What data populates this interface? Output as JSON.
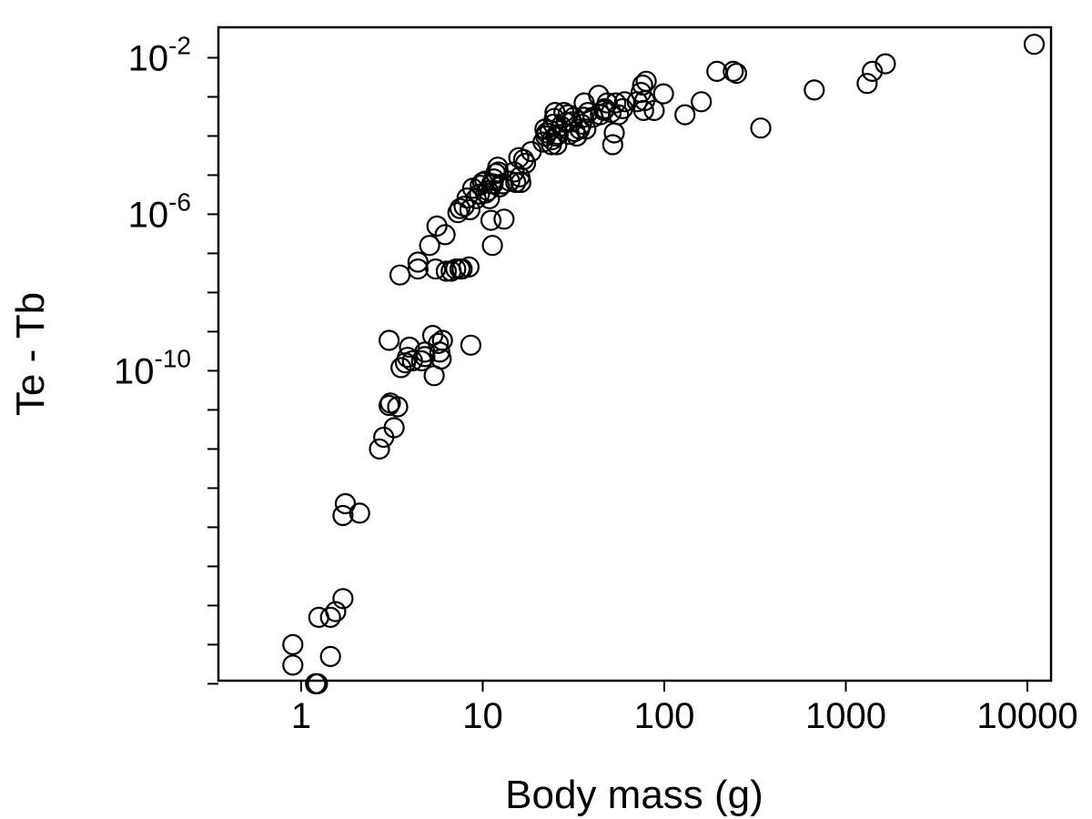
{
  "chart_data": {
    "type": "scatter",
    "title": "",
    "xlabel": "Body mass (g)",
    "ylabel": "Te - Tb",
    "x_scale": "log10",
    "y_scale": "log10",
    "xlim": [
      0.35,
      13500
    ],
    "ylim": [
      1.2e-18,
      0.06
    ],
    "x_ticks": [
      {
        "value": 1,
        "label": "1"
      },
      {
        "value": 10,
        "label": "10"
      },
      {
        "value": 100,
        "label": "100"
      },
      {
        "value": 1000,
        "label": "1000"
      },
      {
        "value": 10000,
        "label": "10000"
      }
    ],
    "y_ticks_labeled": [
      {
        "value": 0.01,
        "base": "10",
        "exp": "-2"
      },
      {
        "value": 1e-06,
        "base": "10",
        "exp": "-6"
      },
      {
        "value": 1e-10,
        "base": "10",
        "exp": "-10"
      }
    ],
    "y_ticks_minor": [
      0.001,
      0.0001,
      1e-05,
      1e-07,
      1e-08,
      1e-09,
      1e-11,
      1e-12,
      1e-13,
      1e-14,
      1e-15,
      1e-16,
      1e-17,
      1e-18
    ],
    "marker": "open-circle",
    "grid": false,
    "legend": "none",
    "series": [
      {
        "points": [
          [
            0.9,
            3e-18
          ],
          [
            0.9,
            1e-17
          ],
          [
            1.2,
            1e-18
          ],
          [
            1.23,
            1e-18
          ],
          [
            1.25,
            5e-17
          ],
          [
            1.45,
            5e-17
          ],
          [
            1.45,
            5e-18
          ],
          [
            1.55,
            7e-17
          ],
          [
            1.7,
            1.5e-16
          ],
          [
            1.7,
            2e-14
          ],
          [
            1.75,
            4e-14
          ],
          [
            2.1,
            2.3e-14
          ],
          [
            2.7,
            1e-12
          ],
          [
            2.85,
            2e-12
          ],
          [
            3.05,
            1.3e-11
          ],
          [
            3.1,
            1.5e-11
          ],
          [
            3.25,
            3.5e-12
          ],
          [
            3.4,
            1.2e-11
          ],
          [
            3.05,
            6e-10
          ],
          [
            3.5,
            2.8e-08
          ],
          [
            3.55,
            1.2e-10
          ],
          [
            3.75,
            1.6e-10
          ],
          [
            3.85,
            2.2e-10
          ],
          [
            3.95,
            4e-10
          ],
          [
            4.1,
            1.8e-10
          ],
          [
            4.4,
            6e-08
          ],
          [
            4.4,
            4e-08
          ],
          [
            4.6,
            1.8e-10
          ],
          [
            4.8,
            2.3e-10
          ],
          [
            4.8,
            3e-10
          ],
          [
            5.1,
            1.6e-07
          ],
          [
            5.3,
            8e-10
          ],
          [
            5.4,
            7.5e-11
          ],
          [
            5.5,
            4e-08
          ],
          [
            5.6,
            5e-07
          ],
          [
            5.7,
            5e-10
          ],
          [
            5.8,
            3e-10
          ],
          [
            5.9,
            2e-10
          ],
          [
            6.0,
            6e-10
          ],
          [
            6.2,
            3e-07
          ],
          [
            6.3,
            3.5e-08
          ],
          [
            6.7,
            3.5e-08
          ],
          [
            7.1,
            4e-08
          ],
          [
            7.3,
            1.1e-06
          ],
          [
            7.5,
            1.4e-06
          ],
          [
            7.5,
            4e-08
          ],
          [
            7.7,
            4e-08
          ],
          [
            7.9,
            1.6e-06
          ],
          [
            8.2,
            2.6e-06
          ],
          [
            8.4,
            4.5e-08
          ],
          [
            8.5,
            1.3e-06
          ],
          [
            8.6,
            4.5e-10
          ],
          [
            8.8,
            4.6e-06
          ],
          [
            9.2,
            2.5e-06
          ],
          [
            9.6,
            3.3e-06
          ],
          [
            9.7,
            5.5e-06
          ],
          [
            10.0,
            6.5e-06
          ],
          [
            10.3,
            7e-06
          ],
          [
            10.4,
            3.5e-06
          ],
          [
            10.7,
            4e-06
          ],
          [
            10.9,
            2.5e-06
          ],
          [
            11.1,
            7e-07
          ],
          [
            11.2,
            6e-06
          ],
          [
            11.3,
            1.6e-07
          ],
          [
            11.4,
            6e-06
          ],
          [
            11.5,
            8e-06
          ],
          [
            11.8,
            1.1e-05
          ],
          [
            12.1,
            1.6e-05
          ],
          [
            12.2,
            1.2e-05
          ],
          [
            12.4,
            5e-06
          ],
          [
            12.9,
            6e-06
          ],
          [
            13.1,
            7.5e-07
          ],
          [
            14.1,
            7e-06
          ],
          [
            14.9,
            1.2e-05
          ],
          [
            15.2,
            6.5e-06
          ],
          [
            15.8,
            2.8e-05
          ],
          [
            16.0,
            9e-06
          ],
          [
            16.2,
            6.5e-06
          ],
          [
            16.8,
            2.5e-05
          ],
          [
            17.2,
            2e-05
          ],
          [
            18.5,
            4e-05
          ],
          [
            21.5,
            7e-05
          ],
          [
            22.0,
            0.00015
          ],
          [
            22.2,
            0.0001
          ],
          [
            22.5,
            0.00012
          ],
          [
            23.5,
            0.00014
          ],
          [
            23.9,
            6e-05
          ],
          [
            24.1,
            8e-05
          ],
          [
            24.5,
            0.0002
          ],
          [
            24.8,
            0.00028
          ],
          [
            25.0,
            0.0004
          ],
          [
            25.3,
            0.0001
          ],
          [
            25.6,
            6e-05
          ],
          [
            26.0,
            0.00011
          ],
          [
            27.0,
            0.00018
          ],
          [
            28.0,
            0.0004
          ],
          [
            28.8,
            0.00022
          ],
          [
            29.5,
            0.00035
          ],
          [
            30.0,
            0.00011
          ],
          [
            31.0,
            0.00023
          ],
          [
            31.8,
            0.0003
          ],
          [
            32.2,
            0.00013
          ],
          [
            33.0,
            0.0001
          ],
          [
            34.2,
            0.00015
          ],
          [
            35.0,
            0.0002
          ],
          [
            36.0,
            0.0003
          ],
          [
            36.2,
            0.0007
          ],
          [
            37.0,
            0.00015
          ],
          [
            38.0,
            0.0004
          ],
          [
            40.5,
            0.0003
          ],
          [
            43.5,
            0.0011
          ],
          [
            44.5,
            0.00035
          ],
          [
            46.5,
            0.00045
          ],
          [
            47.0,
            0.0005
          ],
          [
            48.5,
            0.0007
          ],
          [
            51.0,
            0.0004
          ],
          [
            52.0,
            6e-05
          ],
          [
            53.0,
            0.00012
          ],
          [
            54.0,
            0.0007
          ],
          [
            56.0,
            0.00035
          ],
          [
            59.0,
            0.0005
          ],
          [
            60.5,
            0.00075
          ],
          [
            71.0,
            0.00075
          ],
          [
            74.5,
            0.0013
          ],
          [
            76.0,
            0.002
          ],
          [
            77.0,
            0.00045
          ],
          [
            78.0,
            0.0008
          ],
          [
            79.5,
            0.0025
          ],
          [
            88.0,
            0.00045
          ],
          [
            99.0,
            0.0012
          ],
          [
            130.0,
            0.00035
          ],
          [
            160.0,
            0.00075
          ],
          [
            195.0,
            0.0045
          ],
          [
            240.0,
            0.0045
          ],
          [
            250.0,
            0.004
          ],
          [
            340.0,
            0.00016
          ],
          [
            670.0,
            0.0015
          ],
          [
            1310.0,
            0.0022
          ],
          [
            1400.0,
            0.0045
          ],
          [
            1650.0,
            0.007
          ],
          [
            10900.0,
            0.022
          ]
        ]
      }
    ]
  }
}
